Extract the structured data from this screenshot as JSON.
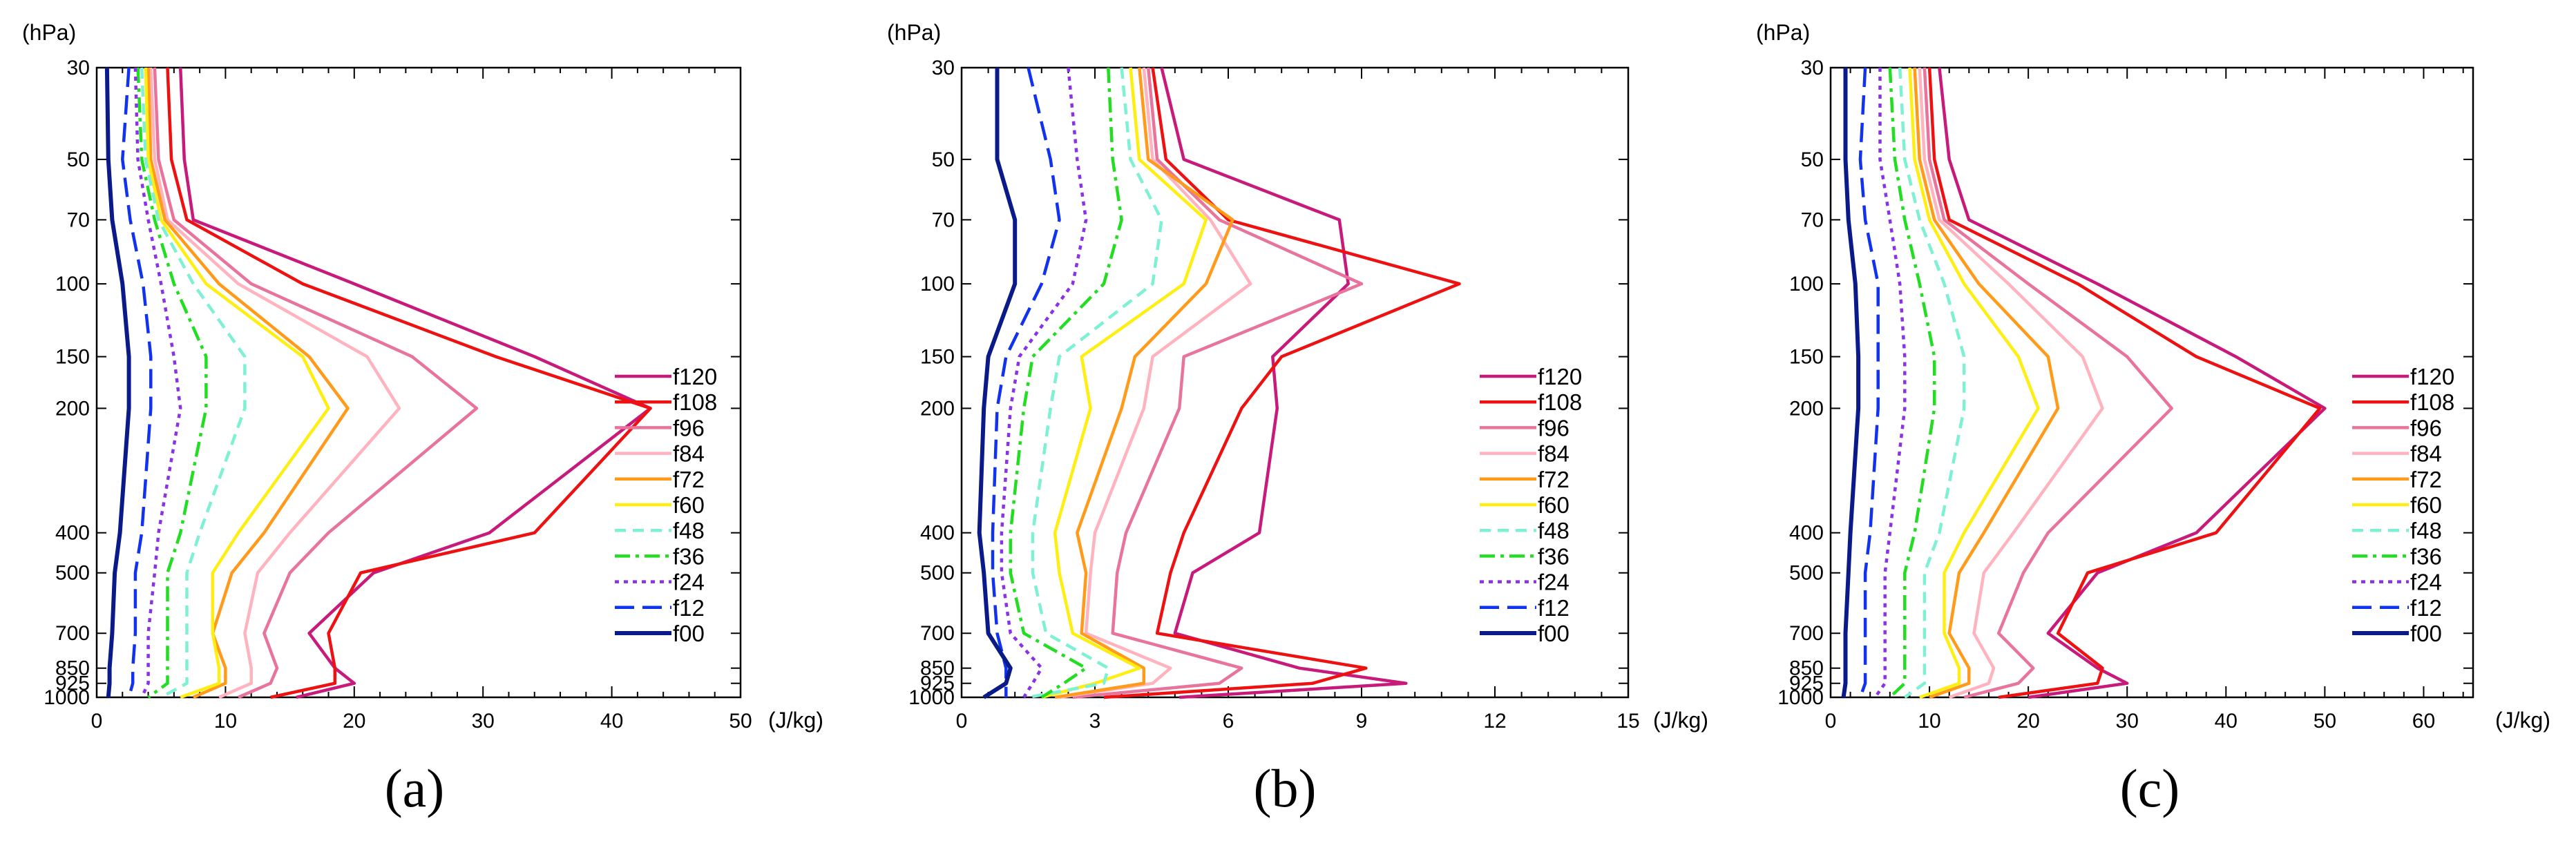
{
  "figure": {
    "panel_labels": [
      "(a)",
      "(b)",
      "(c)"
    ]
  },
  "chart_data": [
    {
      "type": "line",
      "panel": "(a)",
      "ylabel": "(hPa)",
      "xlabel": "(J/kg)",
      "xlim": [
        0,
        50
      ],
      "xticks": [
        0,
        10,
        20,
        30,
        40,
        50
      ],
      "xtick_labels": [
        "0",
        "10",
        "20",
        "30",
        "40",
        "50"
      ],
      "ylim": [
        1000,
        30
      ],
      "yticks": [
        30,
        50,
        70,
        100,
        150,
        200,
        400,
        500,
        700,
        850,
        925,
        1000
      ],
      "ytick_labels": [
        "30",
        "50",
        "70",
        "100",
        "150",
        "200",
        "400",
        "500",
        "700",
        "850",
        "925",
        "1000"
      ],
      "levels": [
        30,
        50,
        70,
        100,
        150,
        200,
        400,
        500,
        700,
        850,
        925,
        1000
      ],
      "legend": [
        "f120",
        "f108",
        "f96",
        "f84",
        "f72",
        "f60",
        "f48",
        "f36",
        "f24",
        "f12",
        "f00"
      ],
      "series": [
        {
          "name": "f120",
          "values": [
            6.5,
            6.8,
            7.5,
            20.0,
            34.0,
            43.0,
            30.5,
            21.5,
            16.5,
            18.5,
            20.0,
            15.5
          ]
        },
        {
          "name": "f108",
          "values": [
            5.5,
            5.8,
            7.0,
            16.0,
            31.0,
            43.0,
            34.0,
            20.5,
            18.0,
            18.5,
            18.5,
            13.5
          ]
        },
        {
          "name": "f96",
          "values": [
            4.5,
            4.8,
            6.0,
            12.0,
            24.5,
            29.5,
            18.0,
            15.0,
            13.0,
            14.0,
            13.5,
            11.0
          ]
        },
        {
          "name": "f84",
          "values": [
            4.2,
            4.5,
            5.5,
            11.0,
            21.0,
            23.5,
            15.0,
            12.5,
            11.5,
            12.0,
            12.0,
            9.5
          ]
        },
        {
          "name": "f72",
          "values": [
            4.0,
            4.2,
            5.3,
            9.5,
            16.5,
            19.5,
            13.0,
            10.5,
            9.0,
            10.0,
            10.0,
            7.5
          ]
        },
        {
          "name": "f60",
          "values": [
            3.8,
            4.0,
            5.0,
            8.5,
            16.0,
            18.0,
            11.0,
            9.0,
            9.0,
            9.5,
            9.5,
            6.5
          ]
        },
        {
          "name": "f48",
          "values": [
            3.5,
            3.8,
            4.8,
            7.5,
            11.5,
            11.5,
            8.0,
            7.0,
            7.0,
            7.0,
            7.0,
            5.0
          ]
        },
        {
          "name": "f36",
          "values": [
            3.2,
            3.5,
            4.5,
            6.0,
            8.5,
            8.5,
            6.5,
            5.5,
            5.5,
            5.5,
            5.5,
            4.0
          ]
        },
        {
          "name": "f24",
          "values": [
            3.0,
            3.2,
            4.0,
            5.0,
            6.0,
            6.5,
            4.8,
            4.5,
            4.0,
            4.0,
            4.0,
            3.5
          ]
        },
        {
          "name": "f12",
          "values": [
            2.5,
            2.0,
            2.6,
            3.6,
            4.2,
            4.2,
            3.5,
            3.0,
            3.0,
            2.8,
            2.8,
            2.5
          ]
        },
        {
          "name": "f00",
          "values": [
            0.8,
            0.9,
            1.2,
            2.0,
            2.5,
            2.5,
            1.8,
            1.4,
            1.2,
            1.0,
            1.0,
            0.9
          ]
        }
      ]
    },
    {
      "type": "line",
      "panel": "(b)",
      "ylabel": "(hPa)",
      "xlabel": "(J/kg)",
      "xlim": [
        0,
        15
      ],
      "xticks": [
        0,
        3,
        6,
        9,
        12,
        15
      ],
      "xtick_labels": [
        "0",
        "3",
        "6",
        "9",
        "12",
        "15"
      ],
      "ylim": [
        1000,
        30
      ],
      "yticks": [
        30,
        50,
        70,
        100,
        150,
        200,
        400,
        500,
        700,
        850,
        925,
        1000
      ],
      "ytick_labels": [
        "30",
        "50",
        "70",
        "100",
        "150",
        "200",
        "400",
        "500",
        "700",
        "850",
        "925",
        "1000"
      ],
      "levels": [
        30,
        50,
        70,
        100,
        150,
        200,
        400,
        500,
        700,
        850,
        925,
        1000
      ],
      "legend": [
        "f120",
        "f108",
        "f96",
        "f84",
        "f72",
        "f60",
        "f48",
        "f36",
        "f24",
        "f12",
        "f00"
      ],
      "series": [
        {
          "name": "f120",
          "values": [
            4.5,
            5.0,
            8.5,
            8.7,
            7.0,
            7.1,
            6.7,
            5.2,
            4.8,
            7.6,
            10.0,
            4.9
          ]
        },
        {
          "name": "f108",
          "values": [
            4.3,
            4.6,
            6.0,
            11.2,
            7.2,
            6.3,
            5.0,
            4.7,
            4.4,
            9.1,
            7.9,
            3.2
          ]
        },
        {
          "name": "f96",
          "values": [
            4.2,
            4.4,
            5.8,
            9.0,
            5.0,
            4.9,
            3.7,
            3.5,
            3.4,
            6.3,
            5.8,
            2.5
          ]
        },
        {
          "name": "f84",
          "values": [
            4.1,
            4.3,
            5.6,
            6.5,
            4.3,
            4.1,
            3.0,
            2.9,
            2.8,
            4.7,
            4.3,
            2.2
          ]
        },
        {
          "name": "f72",
          "values": [
            4.0,
            4.2,
            6.1,
            5.5,
            3.9,
            3.6,
            2.6,
            2.8,
            2.7,
            4.1,
            4.1,
            2.1
          ]
        },
        {
          "name": "f60",
          "values": [
            3.8,
            4.0,
            5.5,
            5.0,
            2.7,
            2.9,
            2.1,
            2.2,
            2.5,
            4.0,
            3.0,
            1.8
          ]
        },
        {
          "name": "f48",
          "values": [
            3.6,
            3.8,
            4.5,
            4.3,
            2.2,
            2.0,
            1.6,
            1.6,
            1.9,
            3.3,
            3.2,
            1.5
          ]
        },
        {
          "name": "f36",
          "values": [
            3.3,
            3.4,
            3.6,
            3.2,
            1.6,
            1.4,
            1.1,
            1.1,
            1.4,
            2.8,
            2.3,
            1.8
          ]
        },
        {
          "name": "f24",
          "values": [
            2.4,
            2.6,
            2.8,
            2.5,
            1.3,
            1.1,
            0.9,
            0.9,
            1.1,
            1.8,
            1.6,
            1.4
          ]
        },
        {
          "name": "f12",
          "values": [
            1.5,
            2.0,
            2.2,
            1.8,
            1.0,
            0.8,
            0.7,
            0.7,
            0.8,
            1.0,
            1.0,
            1.0
          ]
        },
        {
          "name": "f00",
          "values": [
            0.8,
            0.8,
            1.2,
            1.2,
            0.6,
            0.5,
            0.4,
            0.5,
            0.6,
            1.1,
            1.0,
            0.5
          ]
        }
      ]
    },
    {
      "type": "line",
      "panel": "(c)",
      "ylabel": "(hPa)",
      "xlabel": "(J/kg)",
      "xlim": [
        0,
        65
      ],
      "xticks": [
        0,
        10,
        20,
        30,
        40,
        50,
        60
      ],
      "xtick_labels": [
        "0",
        "10",
        "20",
        "30",
        "40",
        "50",
        "60"
      ],
      "ylim": [
        1000,
        30
      ],
      "yticks": [
        30,
        50,
        70,
        100,
        150,
        200,
        400,
        500,
        700,
        850,
        925,
        1000
      ],
      "ytick_labels": [
        "30",
        "50",
        "70",
        "100",
        "150",
        "200",
        "400",
        "500",
        "700",
        "850",
        "925",
        "1000"
      ],
      "levels": [
        30,
        50,
        70,
        100,
        150,
        200,
        400,
        500,
        700,
        850,
        925,
        1000
      ],
      "legend": [
        "f120",
        "f108",
        "f96",
        "f84",
        "f72",
        "f60",
        "f48",
        "f36",
        "f24",
        "f12",
        "f00"
      ],
      "series": [
        {
          "name": "f120",
          "values": [
            11.0,
            12.0,
            14.0,
            27.0,
            41.0,
            50.0,
            37.0,
            27.0,
            22.0,
            27.0,
            30.0,
            20.0
          ]
        },
        {
          "name": "f108",
          "values": [
            10.0,
            10.5,
            12.0,
            25.0,
            37.0,
            49.5,
            39.0,
            26.0,
            23.0,
            27.5,
            27.0,
            17.0
          ]
        },
        {
          "name": "f96",
          "values": [
            9.5,
            10.0,
            11.5,
            20.0,
            30.0,
            34.5,
            22.0,
            19.5,
            17.0,
            20.5,
            19.0,
            13.5
          ]
        },
        {
          "name": "f84",
          "values": [
            9.0,
            9.5,
            11.0,
            18.0,
            25.5,
            27.5,
            18.5,
            15.5,
            14.5,
            16.5,
            16.0,
            12.0
          ]
        },
        {
          "name": "f72",
          "values": [
            8.5,
            9.0,
            10.5,
            15.0,
            22.0,
            23.0,
            15.5,
            13.0,
            12.0,
            14.0,
            14.0,
            10.0
          ]
        },
        {
          "name": "f60",
          "values": [
            8.0,
            8.5,
            10.0,
            13.5,
            19.0,
            21.0,
            13.5,
            11.5,
            11.5,
            13.0,
            13.0,
            9.0
          ]
        },
        {
          "name": "f48",
          "values": [
            7.0,
            7.5,
            9.0,
            11.5,
            13.5,
            13.5,
            11.0,
            9.5,
            9.5,
            9.5,
            9.5,
            7.5
          ]
        },
        {
          "name": "f36",
          "values": [
            6.0,
            6.5,
            7.5,
            9.0,
            10.5,
            10.5,
            8.5,
            7.5,
            7.5,
            7.5,
            7.5,
            6.0
          ]
        },
        {
          "name": "f24",
          "values": [
            5.0,
            5.0,
            6.0,
            7.0,
            7.5,
            7.5,
            6.0,
            5.5,
            5.5,
            5.5,
            5.5,
            4.5
          ]
        },
        {
          "name": "f12",
          "values": [
            3.5,
            3.0,
            3.5,
            4.8,
            4.8,
            4.8,
            4.0,
            3.5,
            3.5,
            3.5,
            3.5,
            3.0
          ]
        },
        {
          "name": "f00",
          "values": [
            1.5,
            1.5,
            1.8,
            2.5,
            2.8,
            2.8,
            2.0,
            1.8,
            1.5,
            1.5,
            1.5,
            1.3
          ]
        }
      ]
    }
  ],
  "series_styles": {
    "f120": {
      "color": "#c71a7a",
      "dash": "solid"
    },
    "f108": {
      "color": "#ee1111",
      "dash": "solid"
    },
    "f96": {
      "color": "#e8739b",
      "dash": "solid"
    },
    "f84": {
      "color": "#ffb3bf",
      "dash": "solid"
    },
    "f72": {
      "color": "#ff9a1a",
      "dash": "solid"
    },
    "f60": {
      "color": "#ffee11",
      "dash": "solid"
    },
    "f48": {
      "color": "#7ef0d4",
      "dash": "dash"
    },
    "f36": {
      "color": "#22dd22",
      "dash": "dashdot"
    },
    "f24": {
      "color": "#8a33e6",
      "dash": "dot"
    },
    "f12": {
      "color": "#1133ee",
      "dash": "longdash"
    },
    "f00": {
      "color": "#0a1a88",
      "dash": "solid"
    }
  }
}
